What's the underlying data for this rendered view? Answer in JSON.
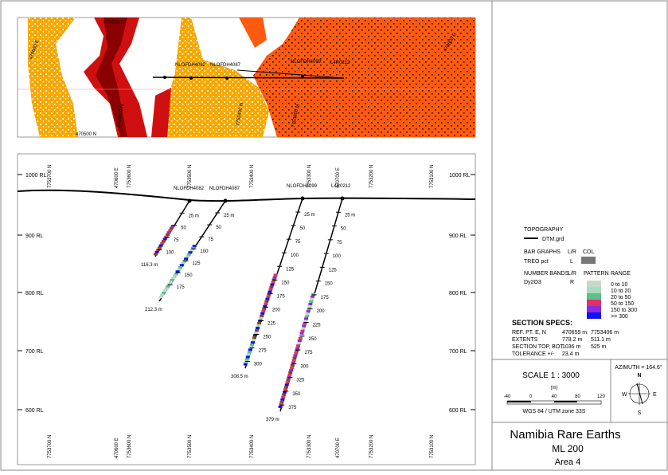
{
  "map": {
    "labels": [
      "470700 E",
      "470600 E",
      "470500 N",
      "7753600 N",
      "7753400 N",
      "7753300 N",
      "470800 E"
    ],
    "holes": [
      "NLOFDH4082",
      "NLOFDH4087",
      "NLOFDH4099",
      "L4R0212"
    ]
  },
  "section": {
    "rl_labels": [
      "1000 RL",
      "900 RL",
      "800 RL",
      "700 RL",
      "600 RL"
    ],
    "grid_labels": [
      "7753700 N",
      "470600 E",
      "7753600 N",
      "7753500 N",
      "7753400 N",
      "7753300 N",
      "470700 E",
      "7753200 N",
      "7753100 N"
    ],
    "holes": [
      {
        "name": "NLOFDH4082",
        "depths": [
          "25 m",
          "50",
          "75",
          "100"
        ],
        "end": "116.3 m"
      },
      {
        "name": "NLOFDH4087",
        "depths": [
          "25 m",
          "50",
          "75",
          "100",
          "125",
          "150",
          "175"
        ],
        "end": "212.3 m"
      },
      {
        "name": "NLOFDH4099",
        "depths": [
          "25 m",
          "50",
          "75",
          "100",
          "125",
          "150",
          "175",
          "200",
          "225",
          "250",
          "275",
          "300"
        ],
        "end": "308.5 m"
      },
      {
        "name": "L4R0212",
        "depths": [
          "25 m",
          "50",
          "75",
          "100",
          "125",
          "150",
          "175",
          "200",
          "225",
          "250",
          "275",
          "300",
          "325",
          "350",
          "375"
        ],
        "end": "379 m"
      }
    ]
  },
  "legend": {
    "topography": "TOPOGRAPHY",
    "dtm": "DTM.grd",
    "bar_graphs": "BAR GRAPHS",
    "lr": "L/R",
    "col": "COL",
    "treo": "TREO pct",
    "treo_side": "L",
    "number_bands": "NUMBER BANDS",
    "lr2": "L/R",
    "pattern": "PATTERN",
    "range": "RANGE",
    "dy": "Dy2O3",
    "dy_side": "R",
    "ranges": [
      {
        "label": "0 to 10",
        "color": "#c8d8c8"
      },
      {
        "label": "10 to 20",
        "color": "#a8dcc0"
      },
      {
        "label": "20 to 50",
        "color": "#5cbf8c"
      },
      {
        "label": "50 to 150",
        "color": "#e0306a"
      },
      {
        "label": "150 to 300",
        "color": "#8a2be2"
      },
      {
        "label": ">= 300",
        "color": "#1010ff"
      }
    ]
  },
  "specs": {
    "title": "SECTION  SPECS:",
    "rows": [
      [
        "REF. PT.  E, N",
        "470659 m",
        "7753406 m"
      ],
      [
        "EXTENTS",
        "778.2 m",
        "511.1 m"
      ],
      [
        "SECTION TOP, BOT",
        "1036 m",
        "525 m"
      ],
      [
        "TOLERANCE  +/-",
        "23.4 m",
        ""
      ]
    ]
  },
  "scale": {
    "title": "SCALE   1 : 3000",
    "unit": "(m)",
    "ticks": [
      "-40",
      "0",
      "40",
      "80",
      "120"
    ],
    "datum": "WGS 84 / UTM zone 33S"
  },
  "azimuth": {
    "label": "AZIMUTH = 164.6°",
    "n": "N",
    "e": "E",
    "s": "S",
    "w": "W"
  },
  "title_block": {
    "title": "Namibia Rare Earths",
    "licence": "ML 200",
    "area": "Area 4"
  }
}
